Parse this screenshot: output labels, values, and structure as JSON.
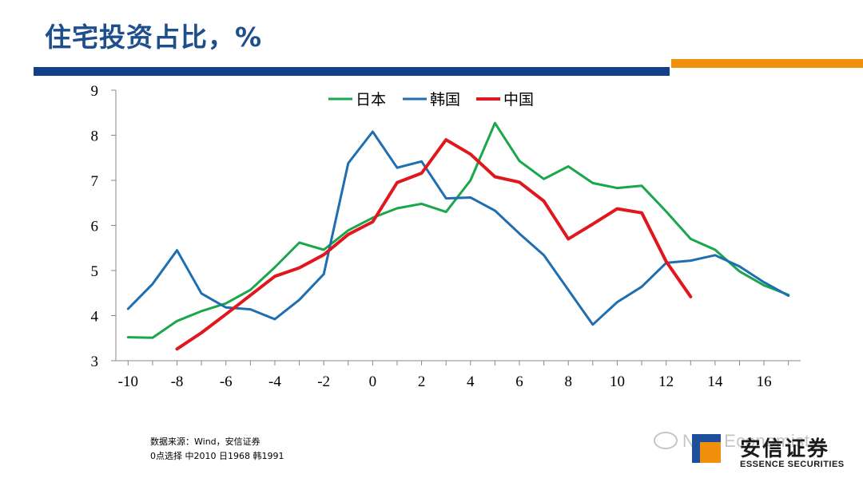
{
  "header": {
    "title": "住宅投资占比，%"
  },
  "colors": {
    "title": "#1f4e8c",
    "bar_blue": "#123f86",
    "bar_orange": "#f0900c"
  },
  "chart_data": {
    "type": "line",
    "title": "",
    "xlabel": "",
    "ylabel": "",
    "xlim": [
      -10.5,
      17.5
    ],
    "ylim": [
      3,
      9
    ],
    "x_ticks": [
      -10,
      -8,
      -6,
      -4,
      -2,
      0,
      2,
      4,
      6,
      8,
      10,
      12,
      14,
      16
    ],
    "y_ticks": [
      3,
      4,
      5,
      6,
      7,
      8,
      9
    ],
    "grid": false,
    "legend_position": "top-center",
    "series": [
      {
        "name": "日本",
        "color": "#1aa64b",
        "x": [
          -10,
          -9,
          -8,
          -7,
          -6,
          -5,
          -4,
          -3,
          -2,
          -1,
          0,
          1,
          2,
          3,
          4,
          5,
          6,
          7,
          8,
          9,
          10,
          11,
          12,
          13,
          14,
          15,
          16,
          17
        ],
        "y": [
          3.52,
          3.51,
          3.88,
          4.1,
          4.27,
          4.57,
          5.07,
          5.62,
          5.46,
          5.89,
          6.17,
          6.38,
          6.48,
          6.3,
          7.0,
          8.27,
          7.43,
          7.03,
          7.31,
          6.94,
          6.83,
          6.88,
          6.31,
          5.7,
          5.46,
          4.98,
          4.67,
          4.46
        ]
      },
      {
        "name": "韩国",
        "color": "#1f6eb0",
        "x": [
          -10,
          -9,
          -8,
          -7,
          -6,
          -5,
          -4,
          -3,
          -2,
          -1,
          0,
          1,
          2,
          3,
          4,
          5,
          6,
          7,
          8,
          9,
          10,
          11,
          12,
          13,
          14,
          15,
          16,
          17
        ],
        "y": [
          4.15,
          4.7,
          5.45,
          4.49,
          4.18,
          4.14,
          3.92,
          4.35,
          4.92,
          7.38,
          8.08,
          7.28,
          7.42,
          6.6,
          6.62,
          6.33,
          5.82,
          5.34,
          4.57,
          3.8,
          4.3,
          4.64,
          5.17,
          5.22,
          5.34,
          5.09,
          4.74,
          4.44
        ]
      },
      {
        "name": "中国",
        "color": "#e0181e",
        "x": [
          -8,
          -7,
          -6,
          -5,
          -4,
          -3,
          -2,
          -1,
          0,
          1,
          2,
          3,
          4,
          5,
          6,
          7,
          8,
          9,
          10,
          11,
          12,
          13
        ],
        "y": [
          3.26,
          3.62,
          4.03,
          4.45,
          4.87,
          5.06,
          5.35,
          5.8,
          6.08,
          6.95,
          7.16,
          7.9,
          7.58,
          7.08,
          6.96,
          6.54,
          5.7,
          6.03,
          6.37,
          6.28,
          5.2,
          4.42
        ]
      }
    ]
  },
  "footer": {
    "source": "数据来源：Wind，安信证券",
    "note": "0点选择 中2010 日1968 韩1991"
  },
  "watermark": {
    "text": "New Economist"
  },
  "logo": {
    "cn": "安信证券",
    "en": "ESSENCE SECURITIES"
  }
}
